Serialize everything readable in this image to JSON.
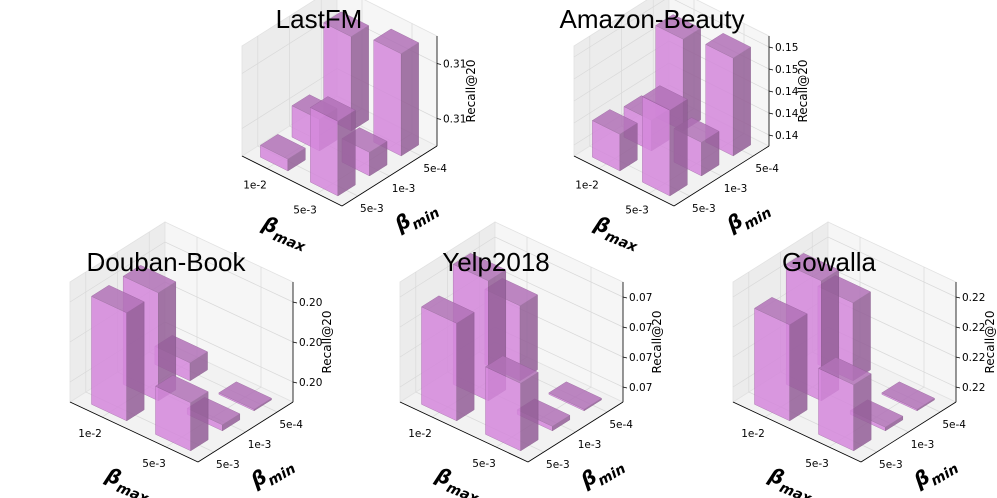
{
  "colors": {
    "bar": "#d98be0"
  },
  "chart_data": [
    {
      "type": "bar3d",
      "title": "LastFM",
      "xlabel": "β_max",
      "ylabel": "β_min",
      "zlabel": "Recall@20",
      "x_ticks": [
        "1e-2",
        "5e-3"
      ],
      "y_ticks": [
        "5e-3",
        "1e-3",
        "5e-4"
      ],
      "z_ticks": [
        "0.31",
        "0.31"
      ],
      "zlim": [
        0.302,
        0.316
      ],
      "bars": [
        {
          "x": "1e-2",
          "y": "5e-4",
          "value": 0.314
        },
        {
          "x": "1e-2",
          "y": "1e-3",
          "value": 0.306
        },
        {
          "x": "1e-2",
          "y": "5e-3",
          "value": 0.3035
        },
        {
          "x": "5e-3",
          "y": "5e-4",
          "value": 0.315
        },
        {
          "x": "5e-3",
          "y": "1e-3",
          "value": 0.305
        },
        {
          "x": "5e-3",
          "y": "5e-3",
          "value": 0.3115
        }
      ]
    },
    {
      "type": "bar3d",
      "title": "Amazon-Beauty",
      "xlabel": "β_max",
      "ylabel": "β_min",
      "zlabel": "Recall@20",
      "x_ticks": [
        "1e-2",
        "5e-3"
      ],
      "y_ticks": [
        "5e-3",
        "1e-3",
        "5e-4"
      ],
      "z_ticks": [
        "0.14",
        "0.14",
        "0.14",
        "0.15",
        "0.15"
      ],
      "zlim": [
        0.134,
        0.152
      ],
      "bars": [
        {
          "x": "1e-2",
          "y": "5e-4",
          "value": 0.149
        },
        {
          "x": "1e-2",
          "y": "1e-3",
          "value": 0.139
        },
        {
          "x": "1e-2",
          "y": "5e-3",
          "value": 0.14
        },
        {
          "x": "5e-3",
          "y": "5e-4",
          "value": 0.15
        },
        {
          "x": "5e-3",
          "y": "1e-3",
          "value": 0.1395
        },
        {
          "x": "5e-3",
          "y": "5e-3",
          "value": 0.148
        }
      ]
    },
    {
      "type": "bar3d",
      "title": "Douban-Book",
      "xlabel": "β_max",
      "ylabel": "β_min",
      "zlabel": "Recall@20",
      "x_ticks": [
        "1e-2",
        "5e-3"
      ],
      "y_ticks": [
        "5e-3",
        "1e-3",
        "5e-4"
      ],
      "z_ticks": [
        "0.20",
        "0.20",
        "0.20"
      ],
      "zlim": [
        0.19,
        0.21
      ],
      "bars": [
        {
          "x": "1e-2",
          "y": "5e-4",
          "value": 0.193
        },
        {
          "x": "1e-2",
          "y": "1e-3",
          "value": 0.208
        },
        {
          "x": "1e-2",
          "y": "5e-3",
          "value": 0.208
        },
        {
          "x": "5e-3",
          "y": "5e-4",
          "value": 0.19
        },
        {
          "x": "5e-3",
          "y": "1e-3",
          "value": 0.191
        },
        {
          "x": "5e-3",
          "y": "5e-3",
          "value": 0.198
        }
      ]
    },
    {
      "type": "bar3d",
      "title": "Yelp2018",
      "xlabel": "β_max",
      "ylabel": "β_min",
      "zlabel": "Recall@20",
      "x_ticks": [
        "1e-2",
        "5e-3"
      ],
      "y_ticks": [
        "5e-3",
        "1e-3",
        "5e-4"
      ],
      "z_ticks": [
        "0.07",
        "0.07",
        "0.07",
        "0.07"
      ],
      "zlim": [
        0.066,
        0.074
      ],
      "bars": [
        {
          "x": "1e-2",
          "y": "5e-4",
          "value": 0.071
        },
        {
          "x": "1e-2",
          "y": "1e-3",
          "value": 0.074
        },
        {
          "x": "1e-2",
          "y": "5e-3",
          "value": 0.0725
        },
        {
          "x": "5e-3",
          "y": "5e-4",
          "value": 0.066
        },
        {
          "x": "5e-3",
          "y": "1e-3",
          "value": 0.0663
        },
        {
          "x": "5e-3",
          "y": "5e-3",
          "value": 0.0705
        }
      ]
    },
    {
      "type": "bar3d",
      "title": "Gowalla",
      "xlabel": "β_max",
      "ylabel": "β_min",
      "zlabel": "Recall@20",
      "x_ticks": [
        "1e-2",
        "5e-3"
      ],
      "y_ticks": [
        "5e-3",
        "1e-3",
        "5e-4"
      ],
      "z_ticks": [
        "0.22",
        "0.22",
        "0.22",
        "0.22"
      ],
      "zlim": [
        0.216,
        0.226
      ],
      "bars": [
        {
          "x": "1e-2",
          "y": "5e-4",
          "value": 0.2225
        },
        {
          "x": "1e-2",
          "y": "1e-3",
          "value": 0.226
        },
        {
          "x": "1e-2",
          "y": "5e-3",
          "value": 0.224
        },
        {
          "x": "5e-3",
          "y": "5e-4",
          "value": 0.216
        },
        {
          "x": "5e-3",
          "y": "1e-3",
          "value": 0.2163
        },
        {
          "x": "5e-3",
          "y": "5e-3",
          "value": 0.2215
        }
      ]
    }
  ]
}
